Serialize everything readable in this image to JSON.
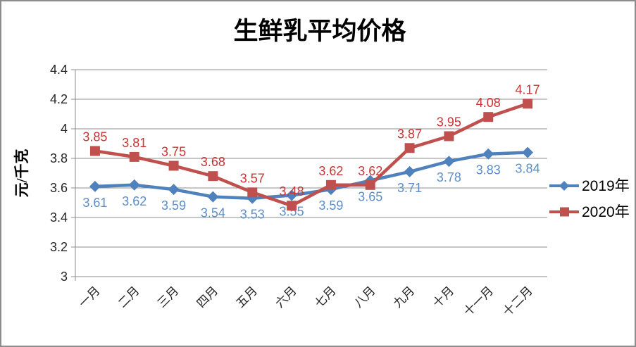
{
  "chart_data": {
    "type": "line",
    "title": "生鲜乳平均价格",
    "ylabel": "元/千克",
    "xlabel": "",
    "categories": [
      "一月",
      "二月",
      "三月",
      "四月",
      "五月",
      "六月",
      "七月",
      "八月",
      "九月",
      "十月",
      "十一月",
      "十二月"
    ],
    "series": [
      {
        "name": "2019年",
        "marker": "diamond",
        "color": "#4F81BD",
        "label_color": "#5B8DC8",
        "label_position": "below",
        "values": [
          3.61,
          3.62,
          3.59,
          3.54,
          3.53,
          3.55,
          3.59,
          3.65,
          3.71,
          3.78,
          3.83,
          3.84
        ]
      },
      {
        "name": "2020年",
        "marker": "square",
        "color": "#C0504D",
        "label_color": "#C93434",
        "label_position": "above",
        "values": [
          3.85,
          3.81,
          3.75,
          3.68,
          3.57,
          3.48,
          3.62,
          3.62,
          3.87,
          3.95,
          4.08,
          4.17
        ]
      }
    ],
    "ylim": [
      3,
      4.4
    ],
    "ytick_step": 0.2,
    "ytick_labels": [
      "3",
      "3.2",
      "3.4",
      "3.6",
      "3.8",
      "4",
      "4.2",
      "4.4"
    ],
    "grid": true,
    "data_labels": true,
    "data_label_decimals": 2,
    "legend_position": "right",
    "colors": {
      "grid": "#8E8E8E",
      "axis": "#8E8E8E",
      "tick_text": "#262626",
      "title_text": "#000000",
      "legend_text": "#000000"
    }
  }
}
